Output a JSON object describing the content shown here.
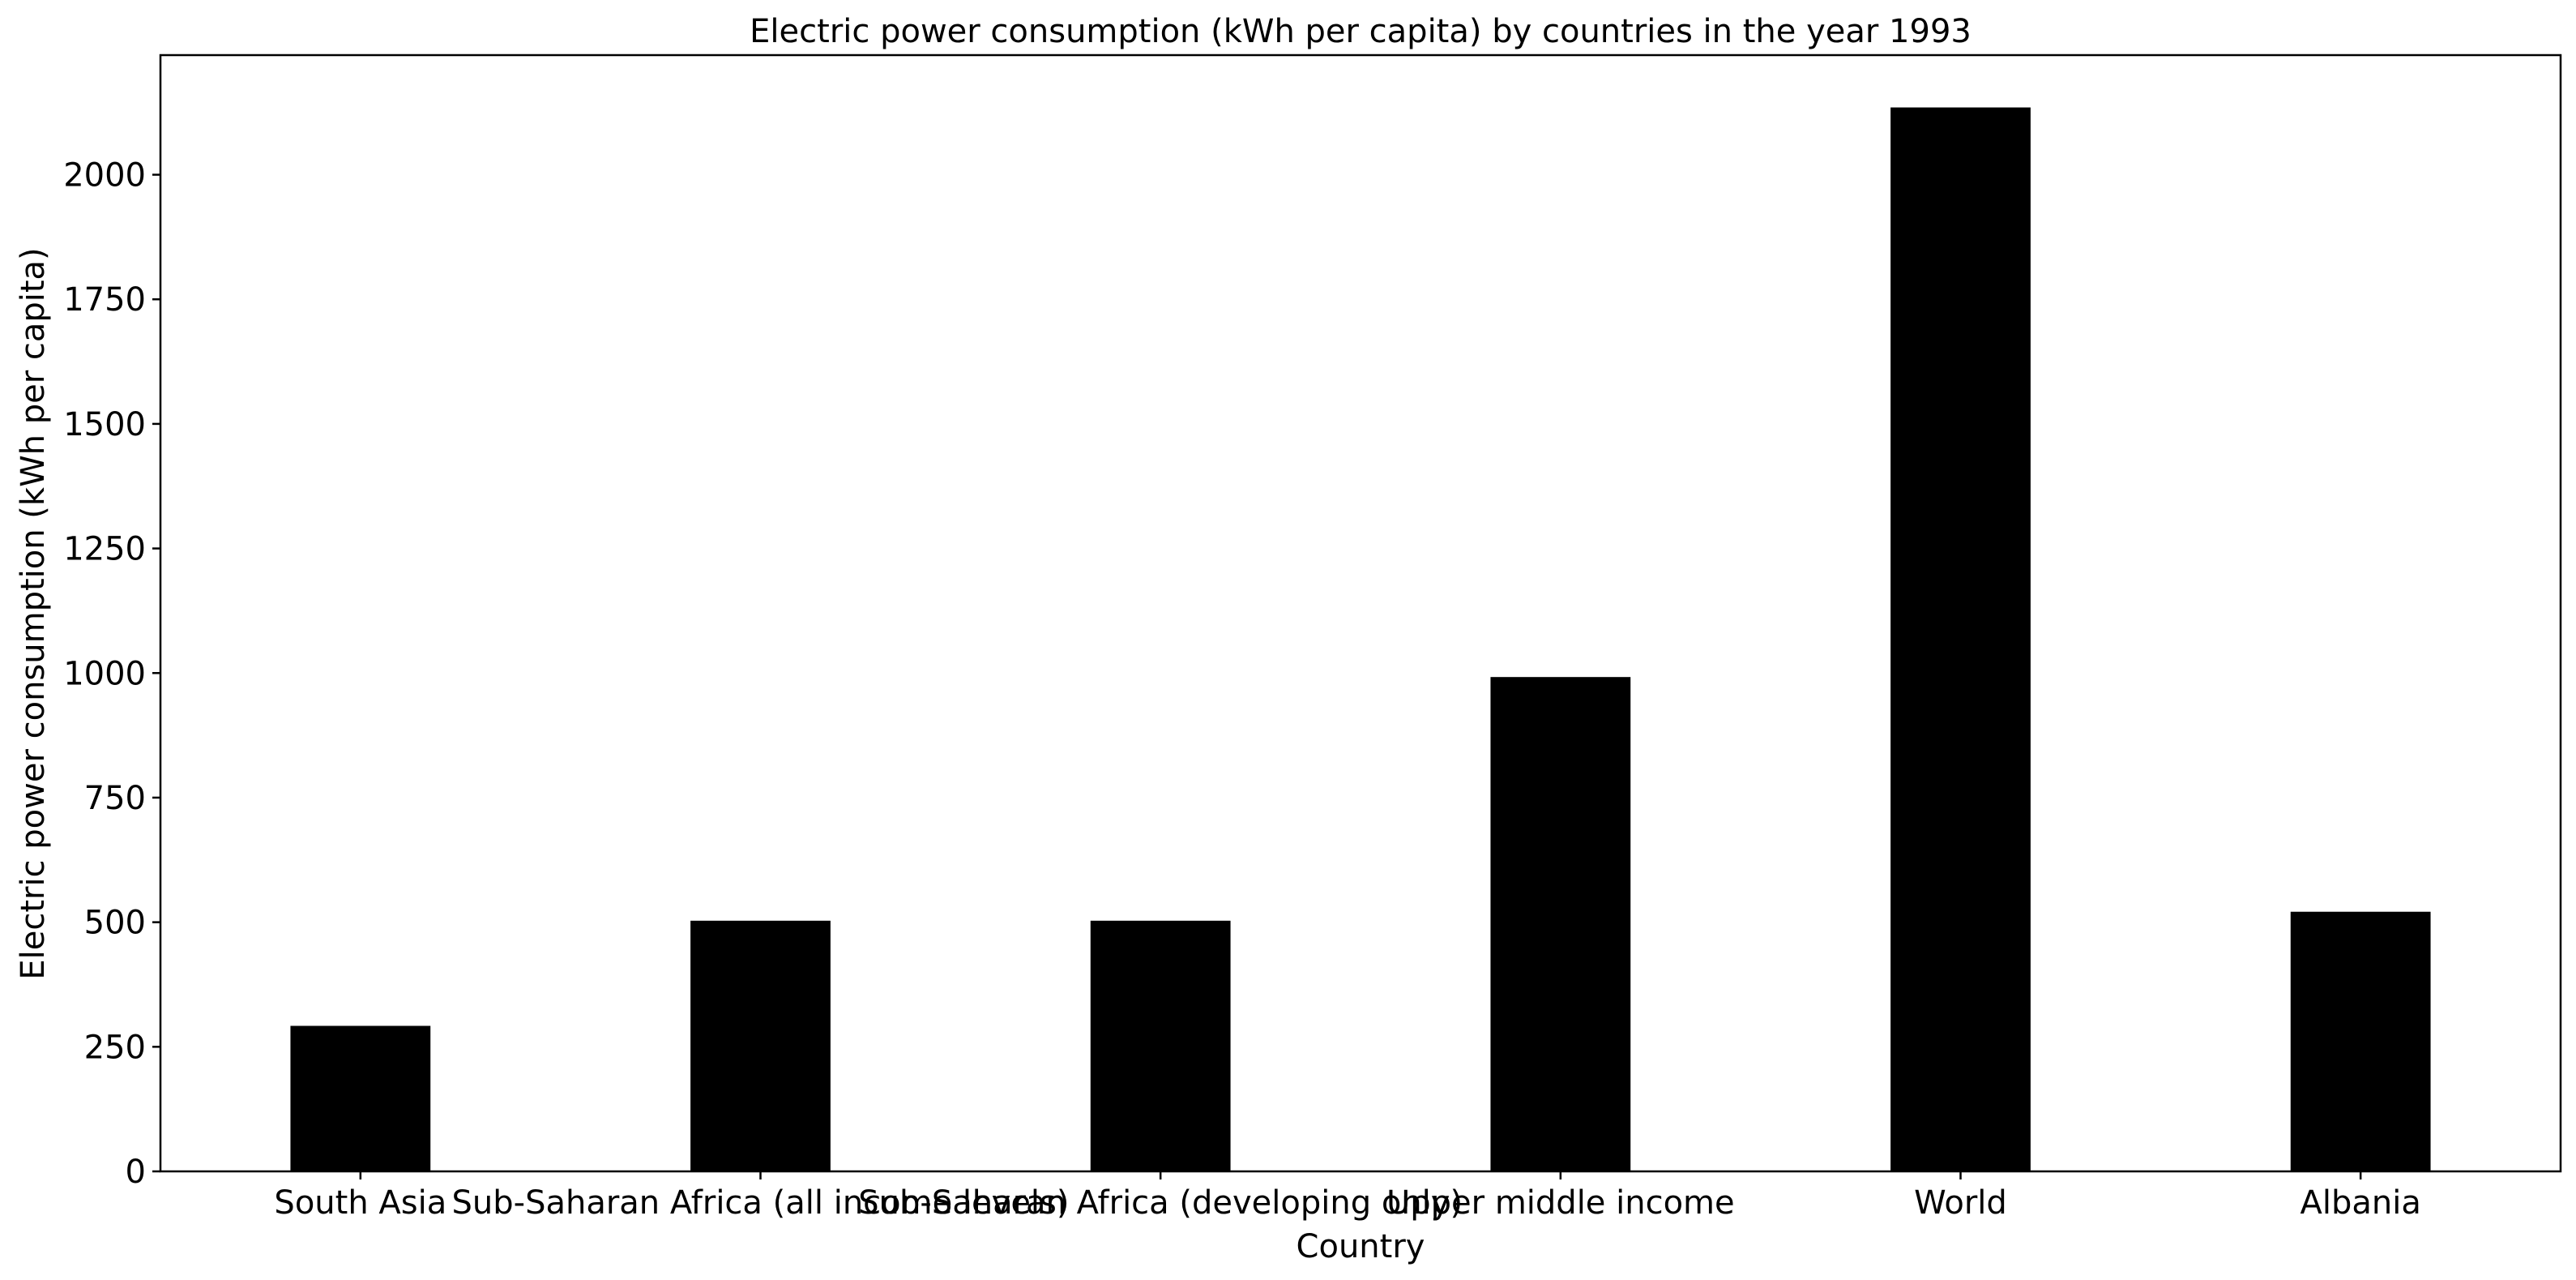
{
  "chart_data": {
    "type": "bar",
    "title": "Electric power consumption (kWh per capita) by countries in the year 1993",
    "xlabel": "Country",
    "ylabel": "Electric power consumption (kWh per capita)",
    "categories": [
      "South Asia",
      "Sub-Saharan Africa (all income levels)",
      "Sub-Saharan Africa (developing only)",
      "Upper middle income",
      "World",
      "Albania"
    ],
    "values": [
      292,
      503,
      503,
      992,
      2135,
      521
    ],
    "ylim": [
      0,
      2240
    ],
    "yticks": [
      0,
      250,
      500,
      750,
      1000,
      1250,
      1500,
      1750,
      2000
    ],
    "grid": false,
    "legend": "none",
    "colors": {
      "bar": "#000000",
      "axis": "#000000",
      "background": "#ffffff"
    }
  }
}
